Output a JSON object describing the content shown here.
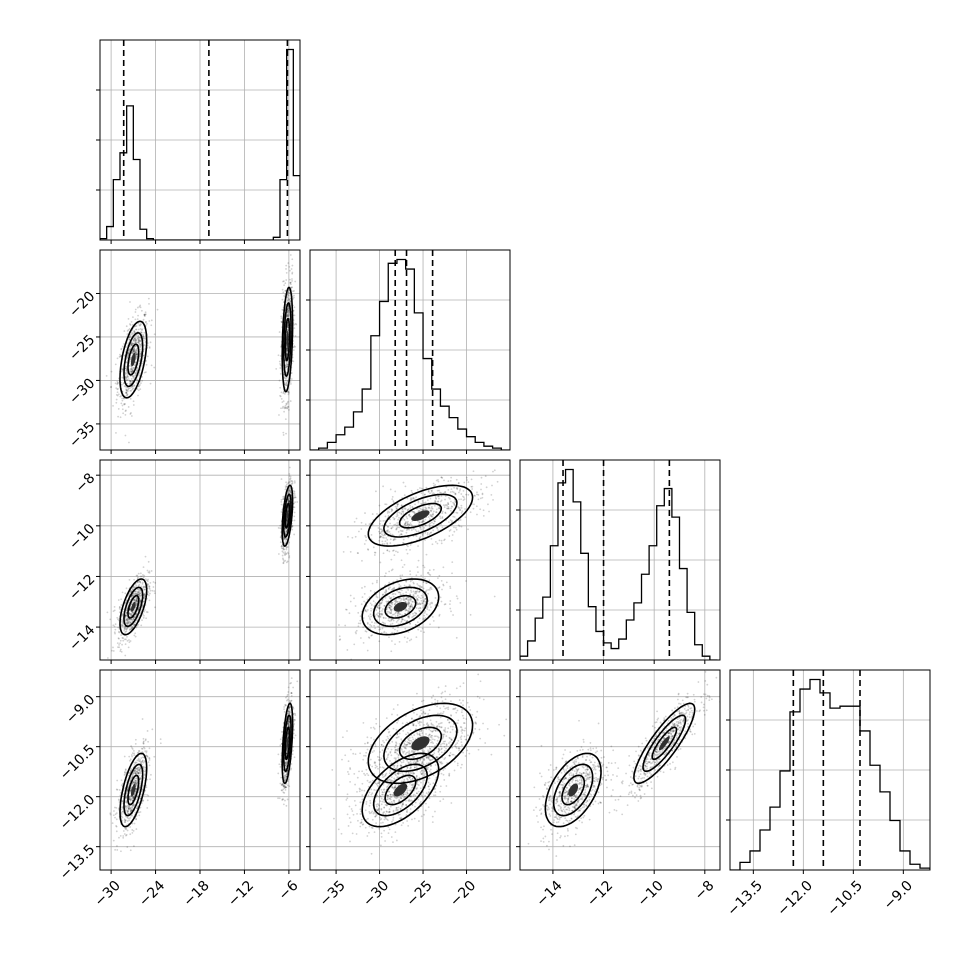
{
  "chart_data": {
    "type": "corner",
    "parameters": [
      "p0",
      "p1",
      "p2",
      "p3"
    ],
    "ranges": [
      [
        -31.5,
        -4.5
      ],
      [
        -38,
        -15
      ],
      [
        -15.3,
        -7.4
      ],
      [
        -14.2,
        -8.2
      ]
    ],
    "axis_ticks": [
      [
        "−30",
        "−24",
        "−18",
        "−12",
        "−6"
      ],
      [
        "−35",
        "−30",
        "−25",
        "−20"
      ],
      [
        "−14",
        "−12",
        "−10",
        "−8"
      ],
      [
        "−13.5",
        "−12.0",
        "−10.5",
        "−9.0"
      ]
    ],
    "axis_tick_values": [
      [
        -30,
        -24,
        -18,
        -12,
        -6
      ],
      [
        -35,
        -30,
        -25,
        -20
      ],
      [
        -14,
        -12,
        -10,
        -8
      ],
      [
        -13.5,
        -12.0,
        -10.5,
        -9.0
      ]
    ],
    "grid": true,
    "quantiles": [
      [
        -28.3,
        -16.8,
        -6.2
      ],
      [
        -28.2,
        -26.9,
        -23.9
      ],
      [
        -13.6,
        -12.0,
        -9.4
      ],
      [
        -12.3,
        -11.4,
        -10.3
      ]
    ],
    "histograms": [
      {
        "edges": [
          -31.5,
          -30.6,
          -29.7,
          -28.8,
          -27.9,
          -27.0,
          -26.1,
          -25.2,
          -24.3,
          -23.4,
          -22.5,
          -21.6,
          -8.1,
          -7.2,
          -6.3,
          -5.4,
          -4.5
        ],
        "counts": [
          0.01,
          0.1,
          0.45,
          0.65,
          1.0,
          0.6,
          0.08,
          0.01,
          0.0,
          0.0,
          0.0,
          0.0,
          0.02,
          0.45,
          1.42,
          0.48
        ]
      },
      {
        "edges": [
          -38,
          -37,
          -36,
          -35,
          -34,
          -33,
          -32,
          -31,
          -30,
          -29,
          -28,
          -27,
          -26,
          -25,
          -24,
          -23,
          -22,
          -21,
          -20,
          -19,
          -18,
          -17,
          -16,
          -15
        ],
        "counts": [
          0.0,
          0.01,
          0.04,
          0.08,
          0.12,
          0.2,
          0.32,
          0.6,
          0.78,
          0.98,
          1.0,
          0.95,
          0.72,
          0.48,
          0.32,
          0.23,
          0.17,
          0.11,
          0.07,
          0.04,
          0.02,
          0.01,
          0.0
        ]
      },
      {
        "edges": [
          -15.3,
          -15.0,
          -14.7,
          -14.4,
          -14.1,
          -13.8,
          -13.5,
          -13.2,
          -12.9,
          -12.6,
          -12.3,
          -12.0,
          -11.7,
          -11.4,
          -11.1,
          -10.8,
          -10.5,
          -10.2,
          -9.9,
          -9.6,
          -9.3,
          -9.0,
          -8.7,
          -8.4,
          -8.1,
          -7.8,
          -7.5
        ],
        "counts": [
          0.02,
          0.1,
          0.22,
          0.33,
          0.6,
          0.93,
          1.0,
          0.83,
          0.56,
          0.28,
          0.15,
          0.09,
          0.06,
          0.11,
          0.21,
          0.3,
          0.45,
          0.6,
          0.81,
          0.9,
          0.75,
          0.48,
          0.25,
          0.08,
          0.02,
          0.0
        ]
      },
      {
        "edges": [
          -14.2,
          -13.9,
          -13.6,
          -13.3,
          -13.0,
          -12.7,
          -12.4,
          -12.1,
          -11.8,
          -11.5,
          -11.2,
          -10.9,
          -10.6,
          -10.3,
          -10.0,
          -9.7,
          -9.4,
          -9.1,
          -8.8,
          -8.5,
          -8.2
        ],
        "counts": [
          0.0,
          0.04,
          0.1,
          0.21,
          0.33,
          0.52,
          0.83,
          0.95,
          1.0,
          0.93,
          0.85,
          0.86,
          0.86,
          0.73,
          0.55,
          0.41,
          0.26,
          0.1,
          0.03,
          0.01
        ]
      }
    ],
    "modes": [
      {
        "center": [
          -27.0,
          -27.6,
          -13.2,
          -11.8
        ],
        "sd": [
          0.9,
          2.2,
          0.55,
          0.55
        ],
        "rho": {
          "0-1": 0.5,
          "0-2": 0.6,
          "0-3": 0.6,
          "1-2": 0.35,
          "1-3": 0.55,
          "2-3": 0.5
        }
      },
      {
        "center": [
          -6.2,
          -25.3,
          -9.6,
          -10.4
        ],
        "sd": [
          0.35,
          3.0,
          0.6,
          0.6
        ],
        "rho": {
          "0-1": 0.3,
          "0-2": 0.5,
          "0-3": 0.5,
          "1-2": 0.6,
          "1-3": 0.45,
          "2-3": 0.85
        }
      }
    ]
  }
}
